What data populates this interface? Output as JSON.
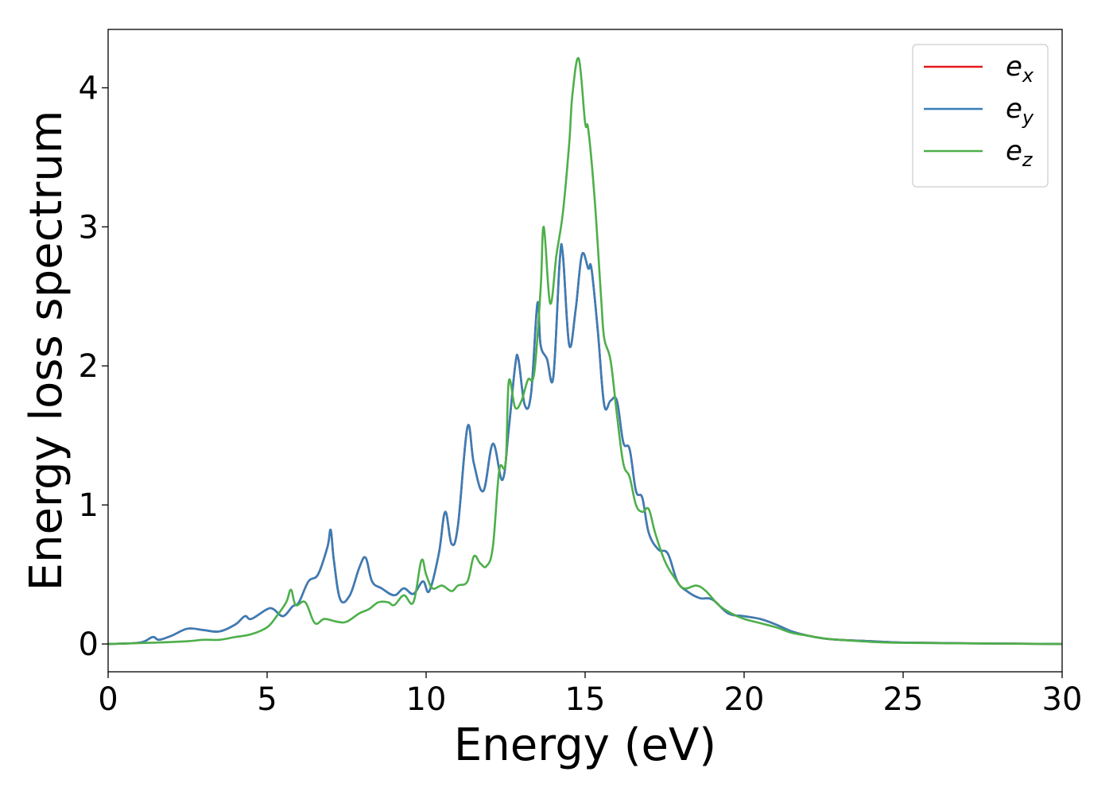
{
  "chart_data": {
    "type": "line",
    "title": "",
    "xlabel": "Energy (eV)",
    "ylabel": "Energy loss spectrum",
    "xlim": [
      0,
      30
    ],
    "ylim": [
      -0.2,
      4.42
    ],
    "xticks": [
      0,
      5,
      10,
      15,
      20,
      25,
      30
    ],
    "yticks": [
      0,
      1,
      2,
      3,
      4
    ],
    "xtick_labels": [
      "0",
      "5",
      "10",
      "15",
      "20",
      "25",
      "30"
    ],
    "ytick_labels": [
      "0",
      "1",
      "2",
      "3",
      "4"
    ],
    "grid": false,
    "legend_position": "top-right",
    "series": [
      {
        "name": "e_x",
        "label_base": "e",
        "label_sub": "x",
        "color": "#e41a1c",
        "x": [
          0,
          1.0,
          1.4,
          1.6,
          2.0,
          2.5,
          3.0,
          3.5,
          4.0,
          4.3,
          4.5,
          5.0,
          5.2,
          5.5,
          5.8,
          6.0,
          6.3,
          6.6,
          6.9,
          7.0,
          7.1,
          7.3,
          7.6,
          7.9,
          8.1,
          8.3,
          8.6,
          9.0,
          9.3,
          9.6,
          9.9,
          10.1,
          10.4,
          10.6,
          10.8,
          11.0,
          11.3,
          11.5,
          11.8,
          12.1,
          12.4,
          12.6,
          12.8,
          12.9,
          13.1,
          13.3,
          13.5,
          13.6,
          13.8,
          14.0,
          14.2,
          14.3,
          14.5,
          14.7,
          14.9,
          15.1,
          15.2,
          15.4,
          15.6,
          15.8,
          16.0,
          16.2,
          16.4,
          16.6,
          16.8,
          17.0,
          17.3,
          17.6,
          17.9,
          18.2,
          18.6,
          19.0,
          19.5,
          20.0,
          20.5,
          21.0,
          21.5,
          22.0,
          22.5,
          23.0,
          24.0,
          25.0,
          27.0,
          30.0
        ],
        "values": [
          0,
          0.01,
          0.05,
          0.03,
          0.06,
          0.11,
          0.1,
          0.09,
          0.14,
          0.2,
          0.18,
          0.25,
          0.25,
          0.2,
          0.27,
          0.3,
          0.45,
          0.5,
          0.7,
          0.82,
          0.6,
          0.32,
          0.35,
          0.55,
          0.62,
          0.45,
          0.4,
          0.35,
          0.4,
          0.36,
          0.45,
          0.38,
          0.65,
          0.95,
          0.72,
          0.85,
          1.56,
          1.3,
          1.1,
          1.44,
          1.18,
          1.55,
          2.0,
          2.05,
          1.72,
          1.8,
          2.45,
          2.15,
          2.05,
          1.92,
          2.75,
          2.8,
          2.15,
          2.4,
          2.8,
          2.7,
          2.7,
          2.25,
          1.72,
          1.75,
          1.75,
          1.45,
          1.4,
          1.1,
          1.05,
          0.8,
          0.68,
          0.65,
          0.45,
          0.38,
          0.33,
          0.32,
          0.22,
          0.2,
          0.18,
          0.14,
          0.09,
          0.06,
          0.04,
          0.03,
          0.02,
          0.01,
          0.005,
          0
        ]
      },
      {
        "name": "e_y",
        "label_base": "e",
        "label_sub": "y",
        "color": "#377eb8",
        "x": [
          0,
          1.0,
          1.4,
          1.6,
          2.0,
          2.5,
          3.0,
          3.5,
          4.0,
          4.3,
          4.5,
          5.0,
          5.2,
          5.5,
          5.8,
          6.0,
          6.3,
          6.6,
          6.9,
          7.0,
          7.1,
          7.3,
          7.6,
          7.9,
          8.1,
          8.3,
          8.6,
          9.0,
          9.3,
          9.6,
          9.9,
          10.1,
          10.4,
          10.6,
          10.8,
          11.0,
          11.3,
          11.5,
          11.8,
          12.1,
          12.4,
          12.6,
          12.8,
          12.9,
          13.1,
          13.3,
          13.5,
          13.6,
          13.8,
          14.0,
          14.2,
          14.3,
          14.5,
          14.7,
          14.9,
          15.1,
          15.2,
          15.4,
          15.6,
          15.8,
          16.0,
          16.2,
          16.4,
          16.6,
          16.8,
          17.0,
          17.3,
          17.6,
          17.9,
          18.2,
          18.6,
          19.0,
          19.5,
          20.0,
          20.5,
          21.0,
          21.5,
          22.0,
          22.5,
          23.0,
          24.0,
          25.0,
          27.0,
          30.0
        ],
        "values": [
          0,
          0.01,
          0.05,
          0.03,
          0.06,
          0.11,
          0.1,
          0.09,
          0.14,
          0.2,
          0.18,
          0.25,
          0.25,
          0.2,
          0.27,
          0.3,
          0.45,
          0.5,
          0.7,
          0.82,
          0.6,
          0.32,
          0.35,
          0.55,
          0.62,
          0.45,
          0.4,
          0.35,
          0.4,
          0.36,
          0.45,
          0.38,
          0.65,
          0.95,
          0.72,
          0.85,
          1.56,
          1.3,
          1.1,
          1.44,
          1.18,
          1.55,
          2.0,
          2.05,
          1.72,
          1.8,
          2.45,
          2.15,
          2.05,
          1.92,
          2.75,
          2.8,
          2.15,
          2.4,
          2.8,
          2.7,
          2.7,
          2.25,
          1.72,
          1.75,
          1.75,
          1.45,
          1.4,
          1.1,
          1.05,
          0.8,
          0.68,
          0.65,
          0.45,
          0.38,
          0.33,
          0.32,
          0.22,
          0.2,
          0.18,
          0.14,
          0.09,
          0.06,
          0.04,
          0.03,
          0.02,
          0.01,
          0.005,
          0
        ]
      },
      {
        "name": "e_z",
        "label_base": "e",
        "label_sub": "z",
        "color": "#4daf4a",
        "x": [
          0,
          1.5,
          2.5,
          3.0,
          3.5,
          4.0,
          4.5,
          5.0,
          5.3,
          5.6,
          5.75,
          5.9,
          6.2,
          6.5,
          6.8,
          7.2,
          7.5,
          7.9,
          8.2,
          8.5,
          8.8,
          9.0,
          9.3,
          9.6,
          9.85,
          10.0,
          10.2,
          10.5,
          10.8,
          11.0,
          11.3,
          11.5,
          11.7,
          11.9,
          12.1,
          12.3,
          12.5,
          12.6,
          12.8,
          13.0,
          13.2,
          13.4,
          13.6,
          13.7,
          13.9,
          14.1,
          14.3,
          14.5,
          14.6,
          14.8,
          15.0,
          15.1,
          15.3,
          15.5,
          15.6,
          15.8,
          16.0,
          16.2,
          16.4,
          16.6,
          16.8,
          17.0,
          17.2,
          17.5,
          17.8,
          18.1,
          18.5,
          18.8,
          19.2,
          19.6,
          20.0,
          20.5,
          21.0,
          21.5,
          22.0,
          22.5,
          23.0,
          24.0,
          25.0,
          27.0,
          30.0
        ],
        "values": [
          0,
          0.01,
          0.02,
          0.03,
          0.03,
          0.05,
          0.07,
          0.12,
          0.2,
          0.3,
          0.39,
          0.28,
          0.3,
          0.15,
          0.18,
          0.16,
          0.16,
          0.22,
          0.25,
          0.3,
          0.3,
          0.28,
          0.35,
          0.3,
          0.6,
          0.5,
          0.4,
          0.42,
          0.38,
          0.42,
          0.45,
          0.63,
          0.58,
          0.56,
          0.7,
          1.25,
          1.3,
          1.89,
          1.7,
          1.75,
          1.9,
          1.95,
          2.55,
          3.0,
          2.45,
          2.8,
          3.1,
          3.6,
          3.95,
          4.21,
          3.75,
          3.7,
          3.2,
          2.5,
          2.2,
          2.04,
          1.65,
          1.3,
          1.2,
          1.0,
          0.95,
          0.97,
          0.8,
          0.6,
          0.48,
          0.4,
          0.42,
          0.38,
          0.28,
          0.22,
          0.18,
          0.15,
          0.12,
          0.08,
          0.06,
          0.04,
          0.03,
          0.015,
          0.008,
          0.004,
          0
        ]
      }
    ]
  }
}
